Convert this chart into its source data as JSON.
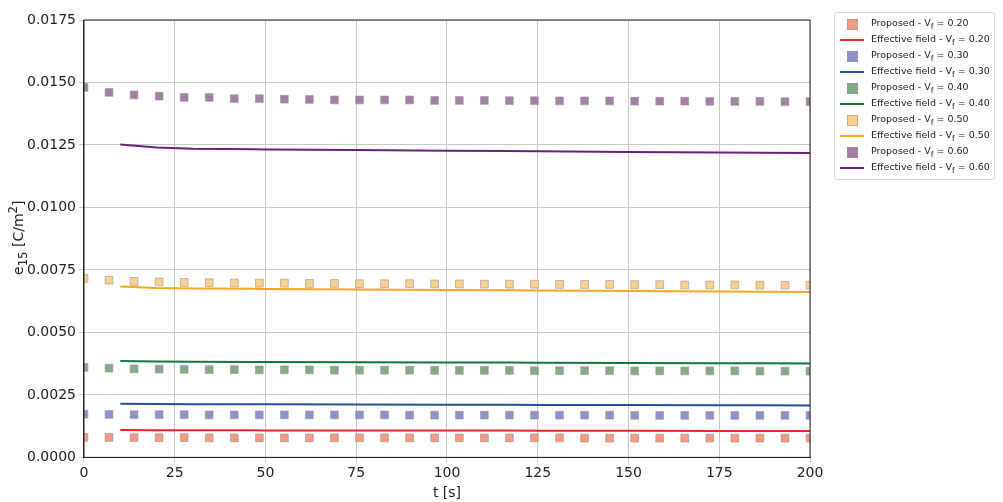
{
  "chart_data": {
    "type": "scatter",
    "xlabel": "t [s]",
    "ylabel": "e$_{15}$ [C/m$^{2}$]",
    "x": [
      0,
      6.9,
      13.8,
      20.7,
      27.6,
      34.5,
      41.4,
      48.3,
      55.2,
      62.1,
      69,
      75.9,
      82.8,
      89.7,
      96.6,
      103.4,
      110.3,
      117.2,
      124.1,
      131,
      137.9,
      144.8,
      151.7,
      158.6,
      165.5,
      172.4,
      179.3,
      186.2,
      193.1,
      200
    ],
    "xlim": [
      0,
      200
    ],
    "xticks": [
      0,
      25,
      50,
      75,
      100,
      125,
      150,
      175,
      200
    ],
    "ylim": [
      0,
      0.0175
    ],
    "yticks": [
      {
        "value": 0,
        "label": "0.0000"
      },
      {
        "value": 0.0025,
        "label": "0.0025"
      },
      {
        "value": 0.005,
        "label": "0.0050"
      },
      {
        "value": 0.0075,
        "label": "0.0075"
      },
      {
        "value": 0.01,
        "label": "0.0100"
      },
      {
        "value": 0.0125,
        "label": "0.0125"
      },
      {
        "value": 0.015,
        "label": "0.0150"
      },
      {
        "value": 0.0175,
        "label": "0.0175"
      }
    ],
    "grid": true,
    "legend": "top right",
    "series": [
      {
        "name": "Proposed - V$_{f}$ = 0.20",
        "marker": "square",
        "color": "#f39a80",
        "values": [
          0.0008,
          0.0008,
          0.00079,
          0.00079,
          0.00079,
          0.00078,
          0.00078,
          0.00078,
          0.00078,
          0.00078,
          0.00078,
          0.00078,
          0.00078,
          0.00078,
          0.00078,
          0.00078,
          0.00078,
          0.00078,
          0.00078,
          0.00078,
          0.00077,
          0.00077,
          0.00077,
          0.00077,
          0.00077,
          0.00077,
          0.00077,
          0.00077,
          0.00077,
          0.00077
        ]
      },
      {
        "name": "Effective field - V$_{f}$ = 0.20",
        "type": "line",
        "marker": "none",
        "color": "#e8262a",
        "x": [
          10,
          20,
          30,
          50,
          75,
          100,
          125,
          150,
          175,
          200
        ],
        "values": [
          0.0011,
          0.00109,
          0.00109,
          0.00108,
          0.00108,
          0.00108,
          0.00107,
          0.00107,
          0.00106,
          0.00106
        ]
      },
      {
        "name": "Proposed - V$_{f}$ = 0.30",
        "marker": "square",
        "color": "#8b93c9",
        "values": [
          0.00173,
          0.00172,
          0.00171,
          0.00171,
          0.00171,
          0.0017,
          0.0017,
          0.0017,
          0.0017,
          0.0017,
          0.0017,
          0.0017,
          0.0017,
          0.00169,
          0.00169,
          0.00169,
          0.00169,
          0.00169,
          0.00169,
          0.00169,
          0.00169,
          0.00169,
          0.00168,
          0.00168,
          0.00168,
          0.00168,
          0.00168,
          0.00168,
          0.00168,
          0.00168
        ]
      },
      {
        "name": "Effective field - V$_{f}$ = 0.30",
        "type": "line",
        "marker": "none",
        "color": "#2a4d9e",
        "x": [
          10,
          20,
          30,
          50,
          75,
          100,
          125,
          150,
          175,
          200
        ],
        "values": [
          0.00215,
          0.00214,
          0.00213,
          0.00213,
          0.00212,
          0.00211,
          0.0021,
          0.0021,
          0.00209,
          0.00208
        ]
      },
      {
        "name": "Proposed - V$_{f}$ = 0.40",
        "marker": "square",
        "color": "#86a98a",
        "values": [
          0.0036,
          0.00357,
          0.00354,
          0.00353,
          0.00352,
          0.00351,
          0.00351,
          0.0035,
          0.0035,
          0.0035,
          0.00349,
          0.00349,
          0.00349,
          0.00349,
          0.00348,
          0.00348,
          0.00348,
          0.00348,
          0.00347,
          0.00347,
          0.00347,
          0.00347,
          0.00346,
          0.00346,
          0.00346,
          0.00346,
          0.00346,
          0.00345,
          0.00345,
          0.00345
        ]
      },
      {
        "name": "Effective field - V$_{f}$ = 0.40",
        "type": "line",
        "marker": "none",
        "color": "#13783f",
        "x": [
          10,
          20,
          30,
          50,
          75,
          100,
          125,
          150,
          175,
          200
        ],
        "values": [
          0.00386,
          0.00384,
          0.00383,
          0.00382,
          0.00381,
          0.0038,
          0.00379,
          0.00378,
          0.00377,
          0.00376
        ]
      },
      {
        "name": "Proposed - V$_{f}$ = 0.50",
        "marker": "square",
        "color": "#fdd08e",
        "values": [
          0.00716,
          0.00709,
          0.00704,
          0.00702,
          0.007,
          0.00699,
          0.00698,
          0.00697,
          0.00697,
          0.00696,
          0.00696,
          0.00695,
          0.00695,
          0.00695,
          0.00694,
          0.00694,
          0.00693,
          0.00693,
          0.00693,
          0.00692,
          0.00692,
          0.00692,
          0.00691,
          0.00691,
          0.0069,
          0.0069,
          0.0069,
          0.00689,
          0.00689,
          0.00689
        ]
      },
      {
        "name": "Effective field - V$_{f}$ = 0.50",
        "type": "line",
        "marker": "none",
        "color": "#f5a623",
        "x": [
          10,
          20,
          30,
          50,
          75,
          100,
          125,
          150,
          175,
          200
        ],
        "values": [
          0.00684,
          0.00678,
          0.00676,
          0.00674,
          0.00672,
          0.0067,
          0.00668,
          0.00666,
          0.00664,
          0.00662
        ]
      },
      {
        "name": "Proposed - V$_{f}$ = 0.60",
        "marker": "square",
        "color": "#a57fa6",
        "values": [
          0.0148,
          0.0146,
          0.0145,
          0.01445,
          0.0144,
          0.0144,
          0.01435,
          0.01435,
          0.01433,
          0.01432,
          0.0143,
          0.0143,
          0.0143,
          0.0143,
          0.01428,
          0.01428,
          0.01428,
          0.01427,
          0.01427,
          0.01426,
          0.01426,
          0.01426,
          0.01425,
          0.01425,
          0.01425,
          0.01424,
          0.01424,
          0.01424,
          0.01423,
          0.01423
        ]
      },
      {
        "name": "Effective field - V$_{f}$ = 0.60",
        "type": "line",
        "marker": "none",
        "color": "#6b1f7b",
        "x": [
          10,
          20,
          30,
          50,
          75,
          100,
          125,
          150,
          175,
          200
        ],
        "values": [
          0.01252,
          0.0124,
          0.01235,
          0.01232,
          0.0123,
          0.01227,
          0.01225,
          0.01222,
          0.0122,
          0.01218
        ]
      }
    ]
  }
}
